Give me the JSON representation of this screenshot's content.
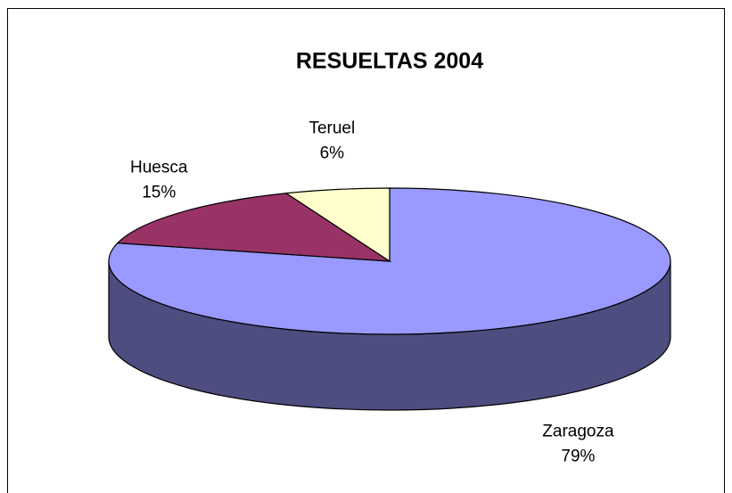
{
  "chart_data": {
    "type": "pie3d",
    "title": "RESUELTAS 2004",
    "categories": [
      "Zaragoza",
      "Huesca",
      "Teruel"
    ],
    "values": [
      79,
      15,
      6
    ],
    "value_labels": [
      "79%",
      "15%",
      "6%"
    ],
    "colors": [
      "#9999ff",
      "#993366",
      "#ffffcc"
    ]
  }
}
